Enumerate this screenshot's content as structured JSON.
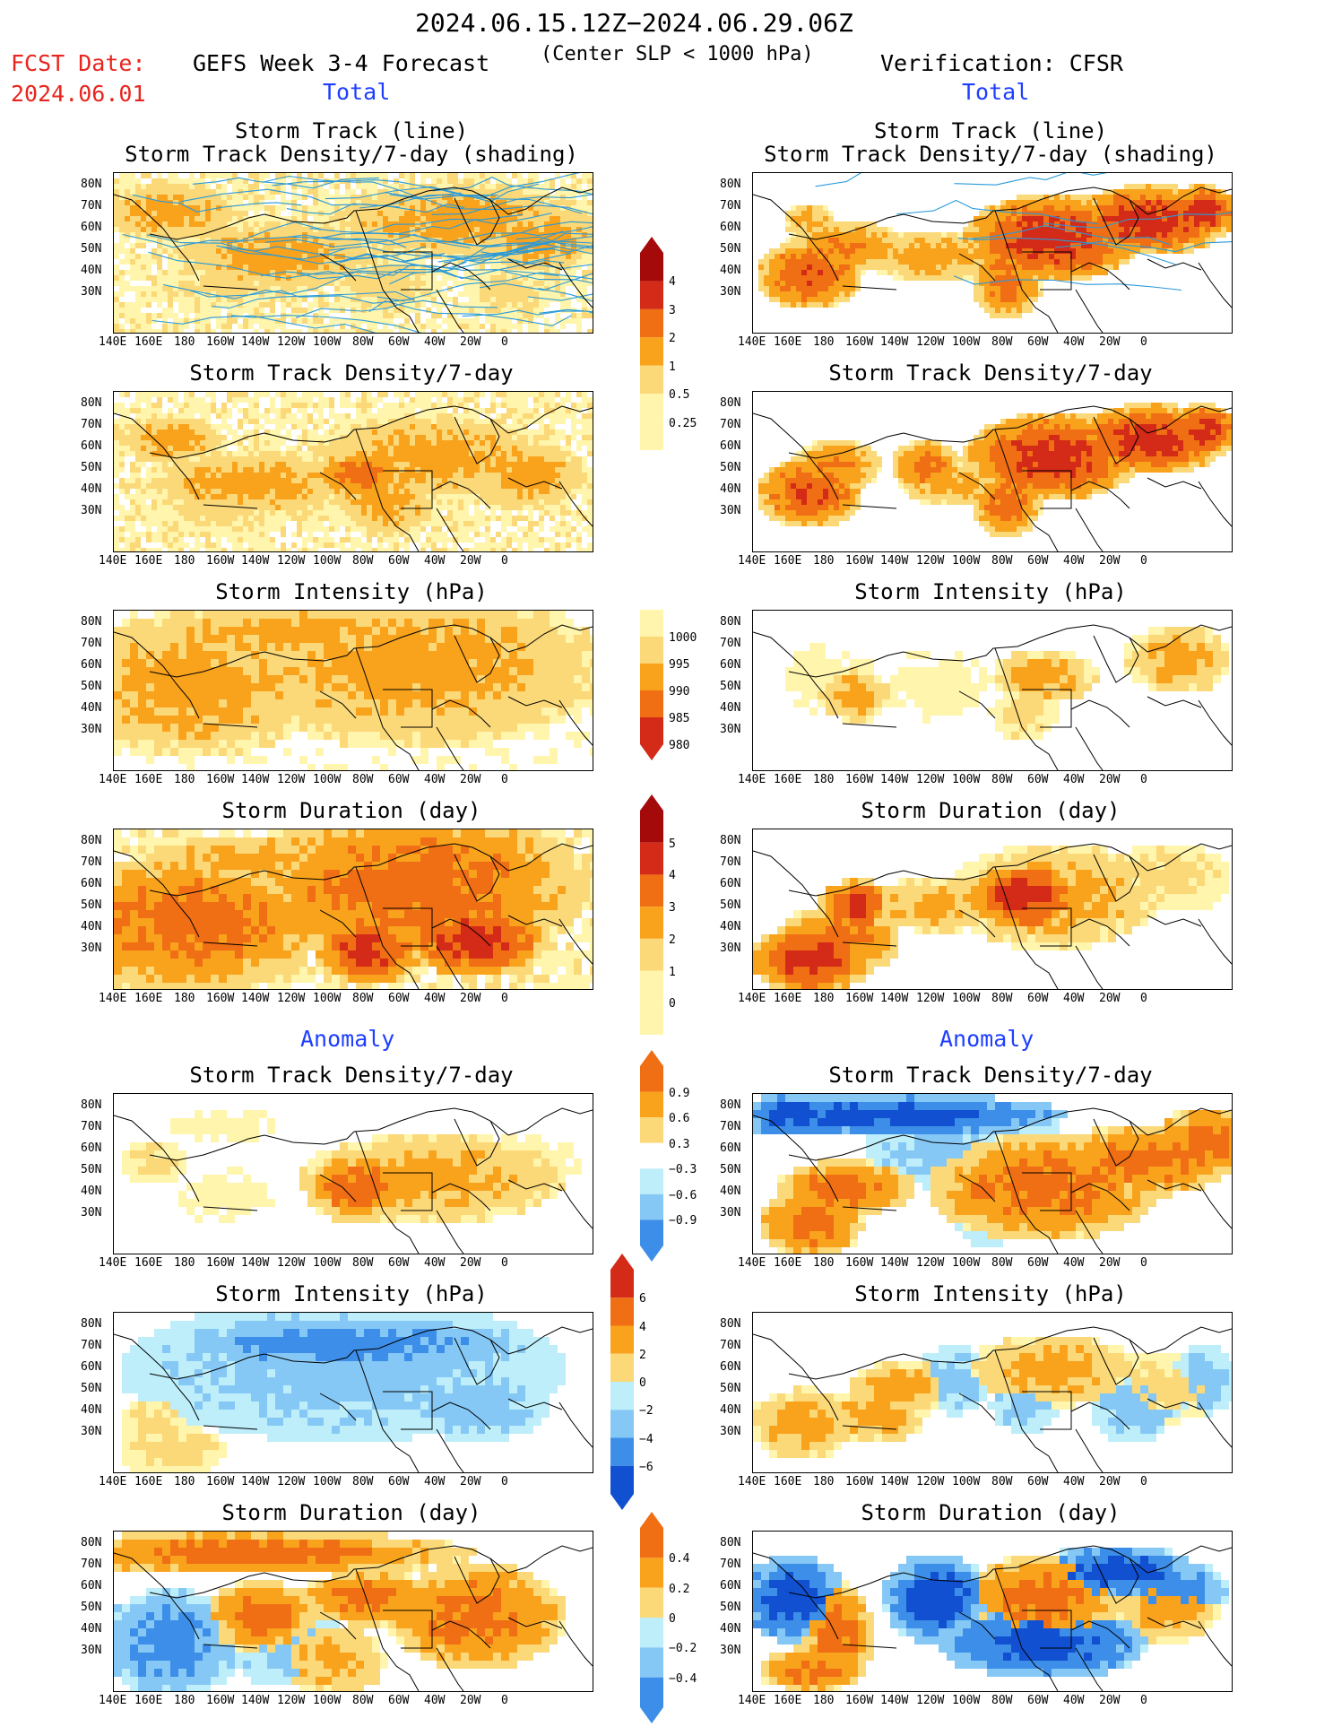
{
  "header": {
    "date_range": "2024.06.15.12Z−2024.06.29.06Z",
    "fcst_label": "FCST Date:",
    "fcst_date": "2024.06.01",
    "left_title": "GEFS Week 3-4 Forecast",
    "center_note": "(Center SLP < 1000 hPa)",
    "right_title": "Verification: CFSR",
    "total_left": "Total",
    "total_right": "Total",
    "anomaly_left": "Anomaly",
    "anomaly_right": "Anomaly"
  },
  "panels": {
    "p1_title_l1": "Storm Track (line)",
    "p1_title_l2": "Storm Track Density/7-day (shading)",
    "density": "Storm Track Density/7-day",
    "intensity": "Storm Intensity (hPa)",
    "duration": "Storm Duration (day)"
  },
  "axes": {
    "lat_ticks": [
      "80N",
      "70N",
      "60N",
      "50N",
      "40N",
      "30N"
    ],
    "lon_ticks": [
      "140E",
      "160E",
      "180",
      "160W",
      "140W",
      "120W",
      "100W",
      "80W",
      "60W",
      "40W",
      "20W",
      "0"
    ]
  },
  "colorbars": {
    "density_total": [
      "4",
      "3",
      "2",
      "1",
      "0.5",
      "0.25"
    ],
    "intensity_total": [
      "1000",
      "995",
      "990",
      "985",
      "980"
    ],
    "duration_total": [
      "5",
      "4",
      "3",
      "2",
      "1",
      "0"
    ],
    "density_anom": [
      "0.9",
      "0.6",
      "0.3",
      "−0.3",
      "−0.6",
      "−0.9"
    ],
    "intensity_anom": [
      "6",
      "4",
      "2",
      "0",
      "−2",
      "−4",
      "−6"
    ],
    "duration_anom": [
      "0.4",
      "0.2",
      "0",
      "−0.2",
      "−0.4"
    ]
  },
  "colors": {
    "c1": "#fff5ac",
    "c2": "#fbd878",
    "c3": "#f9a21c",
    "c4": "#f06e14",
    "c5": "#d42a18",
    "c6": "#a50a0a",
    "b1": "#bdeefa",
    "b2": "#86c8f5",
    "b3": "#3c8ee8",
    "b4": "#1150d0",
    "track": "#2a9ad8"
  }
}
